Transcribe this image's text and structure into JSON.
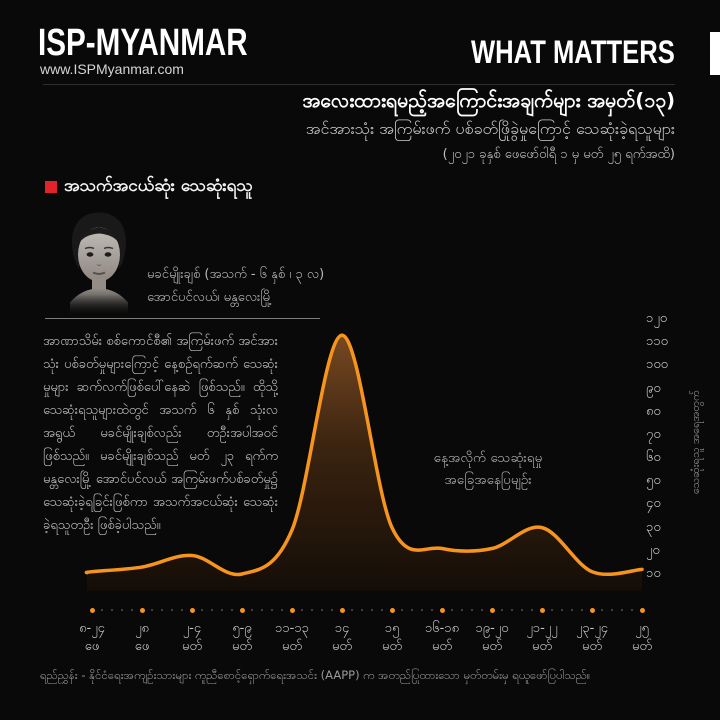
{
  "header": {
    "logo_title": "ISP-MYANMAR",
    "logo_url": "www.ISPMyanmar.com",
    "brand": "WHAT MATTERS"
  },
  "title": {
    "line1": "အလေးထားရမည့်အကြောင်းအချက်များ အမှတ်(၁၃)",
    "line2": "အင်အားသုံး အကြမ်းဖက် ပစ်ခတ်ဖြိုခွဲမှုကြောင့် သေဆုံးခဲ့ရသူများ",
    "line3": "(၂၀၂၁ ခုနှစ် ဖေဖော်ဝါရီ ၁ မှ မတ် ၂၅ ရက်အထိ)"
  },
  "section": {
    "heading": "အသက်အငယ်ဆုံး သေဆုံးရသူ",
    "photo_alt": "child-portrait-grayscale",
    "caption_line1": "မခင်မျိုးချစ် (အသက် - ၆ နှစ် ၊ ၃ လ)",
    "caption_line2": "အောင်ပင်လယ်၊ မန္တလေးမြို့",
    "body": "အာဏာသိမ်း စစ်ကောင်စီ၏ အကြမ်းဖက် အင်အားသုံး ပစ်ခတ်မှုများကြောင့် နေ့စဉ်ရက်ဆက် သေဆုံးမှုများ ဆက်လက်ဖြစ်ပေါ်နေဆဲ ဖြစ်သည်။ ထိုသို့ သေဆုံးရသူများထဲတွင် အသက် ၆ နှစ် သုံးလအရွယ် မခင်မျိုးချစ်လည်း တဦးအပါအဝင် ဖြစ်သည်။ မခင်မျိုးချစ်သည် မတ် ၂၃ ရက်က မန္တလေးမြို့ အောင်ပင်လယ် အကြမ်းဖက်ပစ်ခတ်မှု၌ သေဆုံးခဲ့ရခြင်းဖြစ်ကာ အသက်အငယ်ဆုံး သေဆုံးခဲ့ရသူတဦး ဖြစ်ခဲ့ပါသည်။"
  },
  "chart_data": {
    "type": "area",
    "x_ticks": [
      {
        "date": "၈-၂၄",
        "month": "ဖေ"
      },
      {
        "date": "၂၈",
        "month": "ဖေ"
      },
      {
        "date": "၂-၄",
        "month": "မတ်"
      },
      {
        "date": "၅-၉",
        "month": "မတ်"
      },
      {
        "date": "၁၁-၁၃",
        "month": "မတ်"
      },
      {
        "date": "၁၄",
        "month": "မတ်"
      },
      {
        "date": "၁၅",
        "month": "မတ်"
      },
      {
        "date": "၁၆-၁၈",
        "month": "မတ်"
      },
      {
        "date": "၁၉-၂၀",
        "month": "မတ်"
      },
      {
        "date": "၂၁-၂၂",
        "month": "မတ်"
      },
      {
        "date": "၂၃-၂၄",
        "month": "မတ်"
      },
      {
        "date": "၂၅",
        "month": "မတ်"
      }
    ],
    "values": [
      11,
      13,
      18,
      10,
      29,
      113,
      30,
      21,
      21,
      30,
      11,
      12
    ],
    "y_ticks": [
      "၁၂၀",
      "၁၁၀",
      "၁၀၀",
      "၉၀",
      "၈၀",
      "၇၀",
      "၆၀",
      "၅၀",
      "၄၀",
      "၃၀",
      "၂၀",
      "၁၀"
    ],
    "ylim": [
      10,
      120
    ],
    "ylabel": "သေဆုံးရသူ အရေအတွက်",
    "annotation": [
      "နေ့အလိုက် သေဆုံးရမှု",
      "အခြေအနေပြမျဉ်း"
    ],
    "line_color": "#f7941e",
    "grid": "dotted-baseline"
  },
  "colors": {
    "accent_orange": "#f7941e",
    "bullet_red": "#e02428",
    "background": "#090909"
  },
  "footer": {
    "source": "ရည်ညွှန်း - နိုင်ငံရေးအကျဉ်းသားများ ကူညီစောင့်ရှောက်ရေးအသင်း (AAPP) က အတည်ပြုထားသော မှတ်တမ်းမှ ရယူဖော်ပြပါသည်။"
  }
}
